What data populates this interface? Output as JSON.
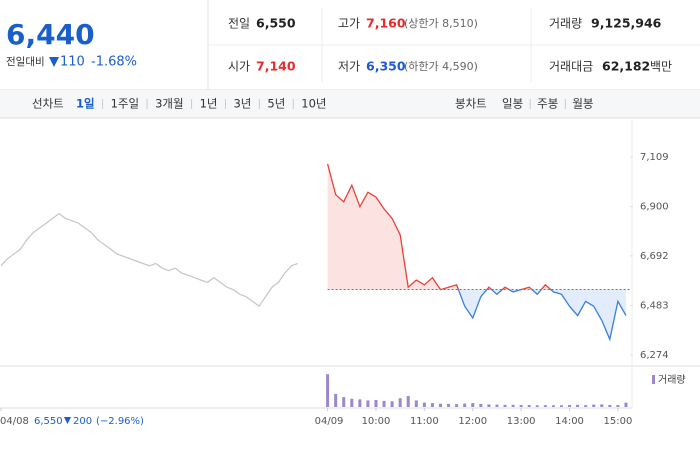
{
  "header": {
    "price": "6,440",
    "change_label": "전일대비",
    "change": "110",
    "change_pct": "-1.68%",
    "stats": [
      {
        "label": "전일",
        "value": "6,550"
      },
      {
        "label": "고가",
        "value": "7,160",
        "note": "(상한가 8,510)"
      },
      {
        "label": "거래량",
        "value": "9,125,946"
      },
      {
        "label": "시가",
        "value": "7,140"
      },
      {
        "label": "저가",
        "value": "6,350",
        "note": "(하한가 4,590)"
      },
      {
        "label": "거래대금",
        "value": "62,182",
        "note": "백만"
      }
    ]
  },
  "tabs": {
    "line_label": "선차트",
    "line_tabs": [
      "1일",
      "1주일",
      "3개월",
      "1년",
      "3년",
      "5년",
      "10년"
    ],
    "candle_label": "봉차트",
    "candle_tabs": [
      "일봉",
      "주봉",
      "월봉"
    ]
  },
  "prev_day_summary": {
    "close": "6,550",
    "change": "200",
    "change_pct": "(−2.96%)"
  },
  "chart_data": {
    "type": "line",
    "xlim": [
      -405,
      375
    ],
    "ylim": [
      6274,
      7109
    ],
    "grid": false,
    "baseline": 6550,
    "xticks": [
      {
        "value": -405,
        "label": "04/08"
      },
      {
        "value": 0,
        "label": "04/09"
      },
      {
        "value": 60,
        "label": "10:00"
      },
      {
        "value": 120,
        "label": "11:00"
      },
      {
        "value": 180,
        "label": "12:00"
      },
      {
        "value": 240,
        "label": "13:00"
      },
      {
        "value": 300,
        "label": "14:00"
      },
      {
        "value": 360,
        "label": "15:00"
      }
    ],
    "yticks": [
      {
        "value": 7109,
        "label": "7,109"
      },
      {
        "value": 6900,
        "label": "6,900"
      },
      {
        "value": 6692,
        "label": "6,692"
      },
      {
        "value": 6483,
        "label": "6,483"
      },
      {
        "value": 6274,
        "label": "6,274"
      }
    ],
    "series": [
      {
        "color": "#c8c8c8",
        "x": [
          -405,
          -397,
          -389,
          -381,
          -373,
          -365,
          -357,
          -349,
          -341,
          -333,
          -325,
          -317,
          -309,
          -301,
          -293,
          -285,
          -277,
          -269,
          -261,
          -253,
          -245,
          -237,
          -229,
          -221,
          -213,
          -205,
          -197,
          -189,
          -181,
          -173,
          -165,
          -157,
          -149,
          -141,
          -133,
          -125,
          -117,
          -109,
          -101,
          -93,
          -85,
          -77,
          -69,
          -61,
          -53,
          -45,
          -37
        ],
        "values": [
          6650,
          6680,
          6700,
          6720,
          6760,
          6790,
          6810,
          6830,
          6850,
          6870,
          6850,
          6840,
          6830,
          6810,
          6790,
          6760,
          6740,
          6720,
          6700,
          6690,
          6680,
          6670,
          6660,
          6650,
          6660,
          6640,
          6630,
          6640,
          6620,
          6610,
          6600,
          6590,
          6580,
          6600,
          6580,
          6560,
          6550,
          6530,
          6520,
          6500,
          6480,
          6520,
          6560,
          6580,
          6620,
          6650,
          6660
        ]
      },
      {
        "color": "#e8413a",
        "color_below": "#3b7ddd",
        "x": [
          0,
          10,
          20,
          30,
          40,
          50,
          60,
          70,
          80,
          90,
          100,
          110,
          120,
          130,
          140,
          150,
          160,
          170,
          180,
          190,
          200,
          210,
          220,
          230,
          240,
          250,
          260,
          270,
          280,
          290,
          300,
          310,
          320,
          330,
          340,
          350,
          360,
          370
        ],
        "values": [
          7080,
          6950,
          6920,
          6990,
          6900,
          6960,
          6940,
          6890,
          6850,
          6780,
          6560,
          6590,
          6570,
          6600,
          6550,
          6560,
          6570,
          6480,
          6430,
          6520,
          6560,
          6530,
          6560,
          6540,
          6550,
          6560,
          6530,
          6570,
          6540,
          6530,
          6480,
          6440,
          6500,
          6480,
          6420,
          6340,
          6500,
          6440
        ]
      }
    ],
    "volume": {
      "name": "거래량",
      "color": "#9b88cc",
      "vlim": [
        0,
        1600000
      ],
      "values": [
        1500000,
        600000,
        450000,
        380000,
        350000,
        300000,
        320000,
        280000,
        260000,
        400000,
        500000,
        300000,
        200000,
        180000,
        150000,
        140000,
        130000,
        160000,
        180000,
        140000,
        120000,
        110000,
        100000,
        100000,
        90000,
        90000,
        80000,
        85000,
        80000,
        80000,
        90000,
        100000,
        85000,
        110000,
        120000,
        95000,
        90000,
        200000
      ]
    }
  }
}
